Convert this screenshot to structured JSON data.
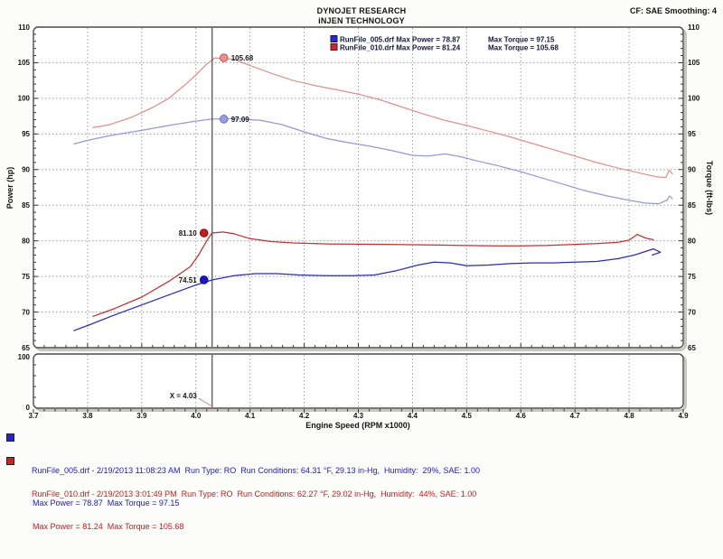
{
  "header": {
    "line1": "DYNOJET RESEARCH",
    "line2": "iNJEN TECHNOLOGY",
    "correction": "CF: SAE  Smoothing: 4"
  },
  "chart_data": {
    "type": "line",
    "title": "",
    "xlabel": "Engine Speed (RPM x1000)",
    "ylabel_left": "Power (hp)",
    "ylabel_right": "Torque (ft-lbs)",
    "xlim": [
      3.7,
      4.9
    ],
    "ylim": [
      65,
      110
    ],
    "x_ticks": [
      3.7,
      3.8,
      3.9,
      4.0,
      4.1,
      4.2,
      4.3,
      4.4,
      4.5,
      4.6,
      4.7,
      4.8,
      4.9
    ],
    "y_ticks": [
      65,
      70,
      75,
      80,
      85,
      90,
      95,
      100,
      105,
      110
    ],
    "grid": "dotted",
    "legend_position": "top-center-inside",
    "legend": [
      {
        "color": "#2828cc",
        "label": "RunFile_005.drf Max Power = 78.87",
        "torque_label": "Max Torque = 97.15"
      },
      {
        "color": "#cc2828",
        "label": "RunFile_010.drf Max Power = 81.24",
        "torque_label": "Max Torque = 105.68"
      }
    ],
    "cursor": {
      "x": 4.03,
      "label": "X = 4.03",
      "callouts": [
        {
          "series": "torque_010",
          "value": 105.68,
          "label": "105.68",
          "side": "right",
          "dot": "#e69090",
          "edge": "#c05a5a"
        },
        {
          "series": "torque_005",
          "value": 97.09,
          "label": "97.09",
          "side": "right",
          "dot": "#989ce2",
          "edge": "#6a6ec0"
        },
        {
          "series": "power_010",
          "value": 81.1,
          "label": "81.10",
          "side": "left",
          "dot": "#d01616",
          "edge": "#8a0e0e"
        },
        {
          "series": "power_005",
          "value": 74.51,
          "label": "74.51",
          "side": "left",
          "dot": "#1616d0",
          "edge": "#0e0e8a"
        }
      ]
    },
    "series": [
      {
        "name": "torque_005",
        "run": "RunFile_005.drf",
        "axis": "torque",
        "color": "#9598d6",
        "points": [
          [
            3.775,
            93.6
          ],
          [
            3.8,
            94.1
          ],
          [
            3.85,
            94.9
          ],
          [
            3.9,
            95.5
          ],
          [
            3.95,
            96.2
          ],
          [
            4.0,
            96.8
          ],
          [
            4.03,
            97.09
          ],
          [
            4.07,
            97.15
          ],
          [
            4.12,
            96.9
          ],
          [
            4.16,
            96.3
          ],
          [
            4.2,
            95.3
          ],
          [
            4.24,
            94.4
          ],
          [
            4.28,
            93.8
          ],
          [
            4.32,
            93.3
          ],
          [
            4.36,
            92.7
          ],
          [
            4.4,
            92.0
          ],
          [
            4.43,
            91.9
          ],
          [
            4.46,
            92.2
          ],
          [
            4.49,
            91.8
          ],
          [
            4.52,
            91.2
          ],
          [
            4.56,
            90.5
          ],
          [
            4.6,
            89.7
          ],
          [
            4.64,
            88.8
          ],
          [
            4.68,
            87.9
          ],
          [
            4.72,
            87.0
          ],
          [
            4.76,
            86.3
          ],
          [
            4.8,
            85.7
          ],
          [
            4.83,
            85.3
          ],
          [
            4.855,
            85.2
          ],
          [
            4.87,
            85.7
          ],
          [
            4.875,
            86.3
          ],
          [
            4.88,
            85.9
          ]
        ]
      },
      {
        "name": "torque_010",
        "run": "RunFile_010.drf",
        "axis": "torque",
        "color": "#dd9090",
        "points": [
          [
            3.81,
            95.9
          ],
          [
            3.84,
            96.3
          ],
          [
            3.88,
            97.3
          ],
          [
            3.92,
            98.7
          ],
          [
            3.95,
            100.0
          ],
          [
            3.98,
            101.9
          ],
          [
            4.0,
            103.3
          ],
          [
            4.02,
            104.8
          ],
          [
            4.035,
            105.68
          ],
          [
            4.07,
            105.5
          ],
          [
            4.1,
            104.6
          ],
          [
            4.14,
            103.5
          ],
          [
            4.18,
            102.5
          ],
          [
            4.22,
            101.8
          ],
          [
            4.26,
            101.2
          ],
          [
            4.3,
            100.6
          ],
          [
            4.34,
            99.8
          ],
          [
            4.38,
            98.8
          ],
          [
            4.42,
            97.8
          ],
          [
            4.46,
            96.9
          ],
          [
            4.5,
            96.2
          ],
          [
            4.54,
            95.4
          ],
          [
            4.58,
            94.6
          ],
          [
            4.62,
            93.7
          ],
          [
            4.66,
            92.8
          ],
          [
            4.7,
            91.9
          ],
          [
            4.74,
            91.0
          ],
          [
            4.78,
            90.2
          ],
          [
            4.82,
            89.5
          ],
          [
            4.85,
            89.0
          ],
          [
            4.868,
            88.9
          ],
          [
            4.874,
            89.9
          ],
          [
            4.88,
            89.4
          ]
        ]
      },
      {
        "name": "power_005",
        "run": "RunFile_005.drf",
        "axis": "power",
        "color": "#2b2bb8",
        "points": [
          [
            3.775,
            67.4
          ],
          [
            3.8,
            68.1
          ],
          [
            3.85,
            69.6
          ],
          [
            3.9,
            71.0
          ],
          [
            3.95,
            72.4
          ],
          [
            4.0,
            73.8
          ],
          [
            4.03,
            74.51
          ],
          [
            4.07,
            75.1
          ],
          [
            4.11,
            75.4
          ],
          [
            4.15,
            75.4
          ],
          [
            4.19,
            75.2
          ],
          [
            4.24,
            75.1
          ],
          [
            4.29,
            75.1
          ],
          [
            4.33,
            75.2
          ],
          [
            4.37,
            75.8
          ],
          [
            4.41,
            76.6
          ],
          [
            4.44,
            77.0
          ],
          [
            4.47,
            76.9
          ],
          [
            4.5,
            76.5
          ],
          [
            4.54,
            76.6
          ],
          [
            4.58,
            76.8
          ],
          [
            4.62,
            76.9
          ],
          [
            4.66,
            76.9
          ],
          [
            4.7,
            77.0
          ],
          [
            4.74,
            77.1
          ],
          [
            4.78,
            77.5
          ],
          [
            4.81,
            78.0
          ],
          [
            4.83,
            78.5
          ],
          [
            4.845,
            78.87
          ],
          [
            4.858,
            78.4
          ],
          [
            4.843,
            78.0
          ]
        ]
      },
      {
        "name": "power_010",
        "run": "RunFile_010.drf",
        "axis": "power",
        "color": "#c43030",
        "points": [
          [
            3.81,
            69.4
          ],
          [
            3.85,
            70.5
          ],
          [
            3.9,
            72.1
          ],
          [
            3.95,
            74.3
          ],
          [
            3.99,
            76.4
          ],
          [
            4.005,
            78.0
          ],
          [
            4.02,
            80.0
          ],
          [
            4.03,
            81.1
          ],
          [
            4.05,
            81.24
          ],
          [
            4.07,
            81.0
          ],
          [
            4.1,
            80.3
          ],
          [
            4.14,
            79.9
          ],
          [
            4.18,
            79.7
          ],
          [
            4.25,
            79.55
          ],
          [
            4.35,
            79.5
          ],
          [
            4.45,
            79.4
          ],
          [
            4.55,
            79.3
          ],
          [
            4.6,
            79.3
          ],
          [
            4.65,
            79.35
          ],
          [
            4.7,
            79.5
          ],
          [
            4.74,
            79.6
          ],
          [
            4.78,
            79.8
          ],
          [
            4.8,
            80.1
          ],
          [
            4.815,
            80.9
          ],
          [
            4.83,
            80.4
          ],
          [
            4.845,
            80.15
          ]
        ]
      }
    ],
    "sub_chart": {
      "ylim": [
        0,
        100
      ],
      "y_tick_labels": [
        "100",
        "0"
      ]
    }
  },
  "run_info": [
    {
      "color": "#1a1acc",
      "line1": "RunFile_005.drf - 2/19/2013 11:08:23 AM  Run Type: RO  Run Conditions: 64.31 °F, 29.13 in-Hg,  Humidity:  29%, SAE: 1.00",
      "line2": "Max Power = 78.87  Max Torque = 97.15"
    },
    {
      "color": "#cc1a1a",
      "line1": "RunFile_010.drf - 2/19/2013 3:01:49 PM  Run Type: RO  Run Conditions: 62.27 °F, 29.02 in-Hg,  Humidity:  44%, SAE: 1.00",
      "line2": "Max Power = 81.24  Max Torque = 105.68"
    }
  ]
}
